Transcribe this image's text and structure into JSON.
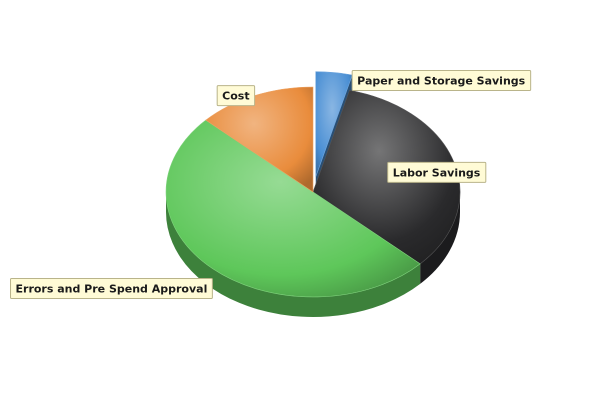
{
  "chart_data": {
    "type": "pie",
    "title": "",
    "slices": [
      {
        "label": "Paper and Storage Savings",
        "value": 4,
        "color": "#4a8fd4",
        "exploded": true
      },
      {
        "label": "Labor Savings",
        "value": 33,
        "color": "#2a2a2c",
        "exploded": false
      },
      {
        "label": "Errors and Pre Spend Approval",
        "value": 50,
        "color": "#5ec75a",
        "exploded": false
      },
      {
        "label": "Cost",
        "value": 13,
        "color": "#e98c3c",
        "exploded": false
      }
    ],
    "style": "3d",
    "legend": "none",
    "labels_shown": true
  }
}
